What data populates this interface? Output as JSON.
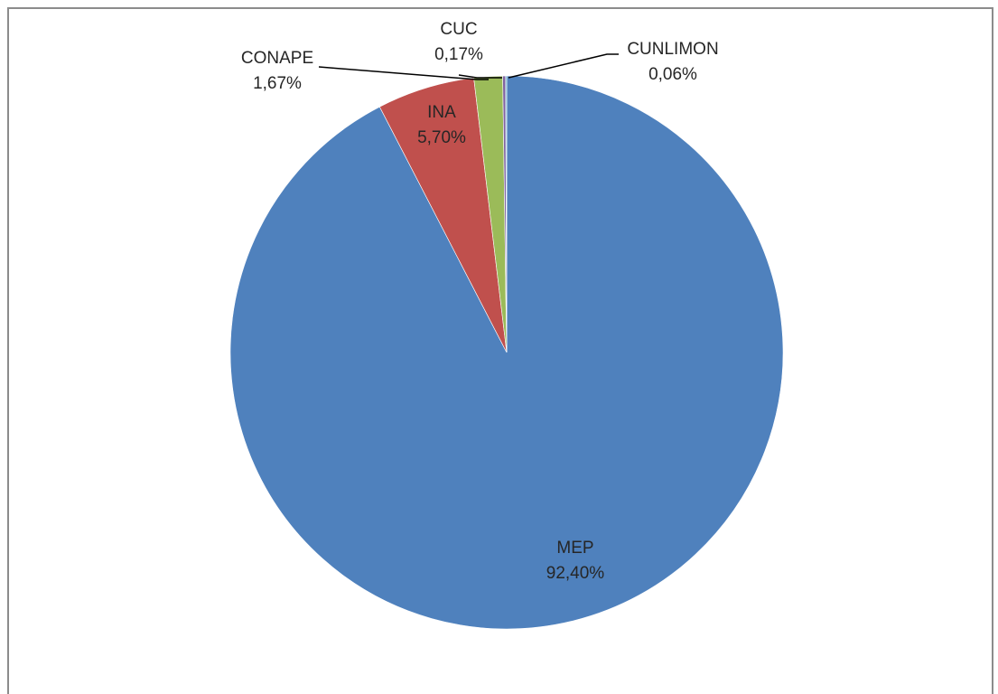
{
  "chart_data": {
    "type": "pie",
    "title": "",
    "slices": [
      {
        "label": "MEP",
        "value": 92.4,
        "value_label": "92,40%",
        "color": "#4f81bd"
      },
      {
        "label": "INA",
        "value": 5.7,
        "value_label": "5,70%",
        "color": "#c0504d"
      },
      {
        "label": "CONAPE",
        "value": 1.67,
        "value_label": "1,67%",
        "color": "#9bbb59"
      },
      {
        "label": "CUC",
        "value": 0.17,
        "value_label": "0,17%",
        "color": "#8064a2"
      },
      {
        "label": "CUNLIMON",
        "value": 0.06,
        "value_label": "0,06%",
        "color": "#4bacc6"
      }
    ],
    "legend": "none",
    "data_labels": "category-and-percentage"
  }
}
